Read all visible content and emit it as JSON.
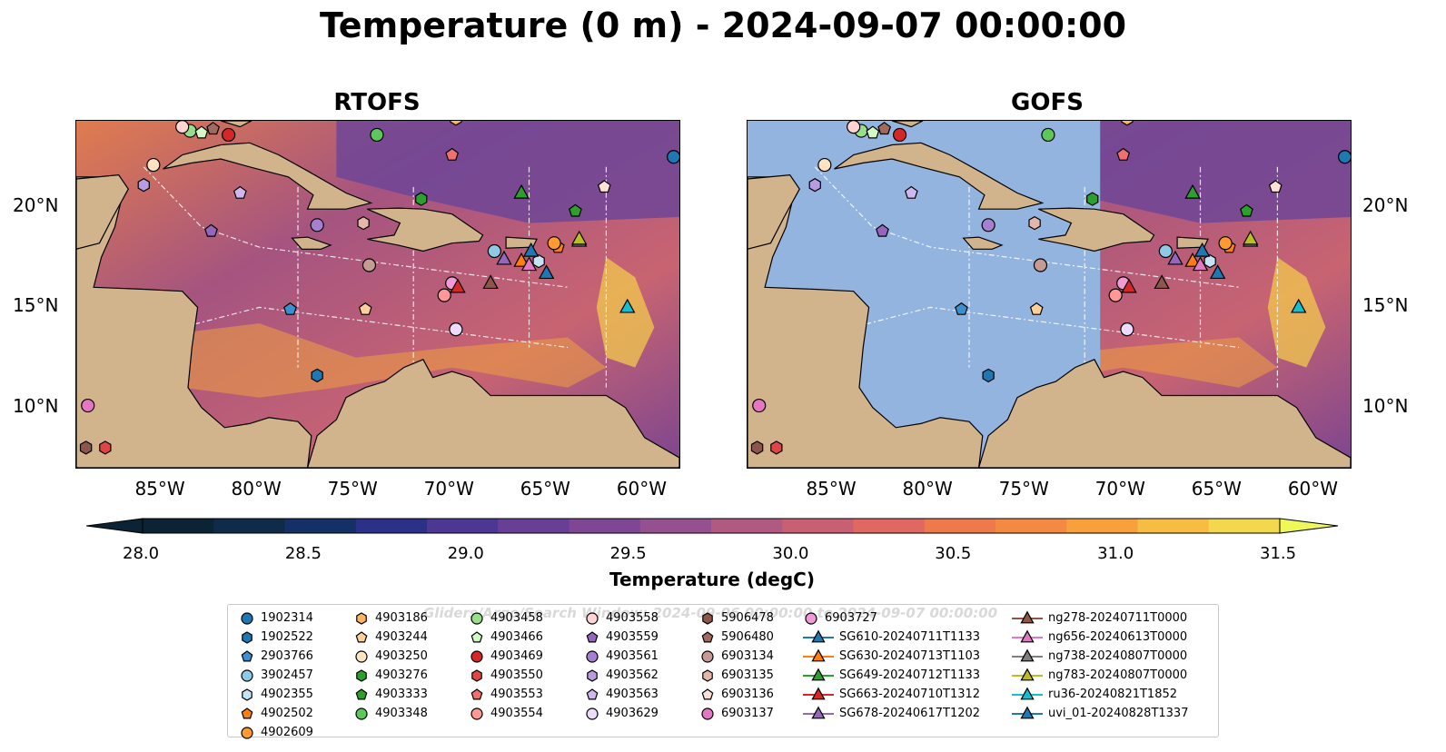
{
  "title": "Temperature (0 m) - 2024-09-07 00:00:00",
  "panels": [
    {
      "title": "RTOFS"
    },
    {
      "title": "GOFS"
    }
  ],
  "axes": {
    "lon_ticks": [
      "85°W",
      "80°W",
      "75°W",
      "70°W",
      "65°W",
      "60°W"
    ],
    "lat_ticks": [
      "20°N",
      "15°N",
      "10°N"
    ]
  },
  "colorbar": {
    "label": "Temperature (degC)",
    "min": 28.0,
    "max": 31.5,
    "ticks": [
      "28.0",
      "28.5",
      "29.0",
      "29.5",
      "30.0",
      "30.5",
      "31.0",
      "31.5"
    ],
    "colors": [
      "#0b2335",
      "#102a4a",
      "#153066",
      "#2b3088",
      "#4c3893",
      "#683f96",
      "#7f4694",
      "#955090",
      "#b05a82",
      "#c85f72",
      "#df6960",
      "#ee7a4c",
      "#f48a42",
      "#f7a03c",
      "#f6bd42",
      "#f3d84e"
    ],
    "extend_low_color": "#0b2335",
    "extend_high_color": "#eef85a"
  },
  "legend": {
    "watermark": "Gliders/Argo/Search Window: 2024-09-06 00:00:00 to 2024-09-07 00:00:00",
    "items": [
      {
        "label": "1902314",
        "marker": "circle",
        "color": "#1f77b4"
      },
      {
        "label": "1902522",
        "marker": "hexagon",
        "color": "#1f77b4"
      },
      {
        "label": "2903766",
        "marker": "pentagon",
        "color": "#3a8fd0"
      },
      {
        "label": "3902457",
        "marker": "circle",
        "color": "#8ecae6"
      },
      {
        "label": "4902355",
        "marker": "hexagon",
        "color": "#c6e2f5"
      },
      {
        "label": "4902502",
        "marker": "pentagon",
        "color": "#ff7f0e"
      },
      {
        "label": "4902609",
        "marker": "circle",
        "color": "#ff9a2e"
      },
      {
        "label": "4903186",
        "marker": "hexagon",
        "color": "#ffb366"
      },
      {
        "label": "4903244",
        "marker": "pentagon",
        "color": "#ffcf99"
      },
      {
        "label": "4903250",
        "marker": "circle",
        "color": "#ffe4c4"
      },
      {
        "label": "4903276",
        "marker": "hexagon",
        "color": "#2ca02c"
      },
      {
        "label": "4903333",
        "marker": "pentagon",
        "color": "#2ca02c"
      },
      {
        "label": "4903348",
        "marker": "circle",
        "color": "#5cc85c"
      },
      {
        "label": "4903458",
        "marker": "circle",
        "color": "#98df8a"
      },
      {
        "label": "4903466",
        "marker": "pentagon",
        "color": "#d4f7c4"
      },
      {
        "label": "4903469",
        "marker": "circle",
        "color": "#d62728"
      },
      {
        "label": "4903550",
        "marker": "hexagon",
        "color": "#e04545"
      },
      {
        "label": "4903553",
        "marker": "pentagon",
        "color": "#f07070"
      },
      {
        "label": "4903554",
        "marker": "circle",
        "color": "#ff9896"
      },
      {
        "label": "4903558",
        "marker": "circle",
        "color": "#ffd4d2"
      },
      {
        "label": "4903559",
        "marker": "pentagon",
        "color": "#9467bd"
      },
      {
        "label": "4903561",
        "marker": "circle",
        "color": "#a57fd0"
      },
      {
        "label": "4903562",
        "marker": "hexagon",
        "color": "#b89be0"
      },
      {
        "label": "4903563",
        "marker": "pentagon",
        "color": "#cfb7ef"
      },
      {
        "label": "4903629",
        "marker": "circle",
        "color": "#ecdcfb"
      },
      {
        "label": "5906478",
        "marker": "hexagon",
        "color": "#8c564b"
      },
      {
        "label": "5906480",
        "marker": "pentagon",
        "color": "#a06a5e"
      },
      {
        "label": "6903134",
        "marker": "circle",
        "color": "#c49c94"
      },
      {
        "label": "6903135",
        "marker": "hexagon",
        "color": "#e5b7ab"
      },
      {
        "label": "6903136",
        "marker": "pentagon",
        "color": "#fde0d6"
      },
      {
        "label": "6903137",
        "marker": "circle",
        "color": "#e377c2"
      },
      {
        "label": "6903727",
        "marker": "circle",
        "color": "#f09ad6"
      },
      {
        "label": "SG610-20240711T1133",
        "marker": "triangle",
        "color": "#1f77b4"
      },
      {
        "label": "SG630-20240713T1103",
        "marker": "triangle",
        "color": "#ff7f0e"
      },
      {
        "label": "SG649-20240712T1133",
        "marker": "triangle",
        "color": "#2ca02c"
      },
      {
        "label": "SG663-20240710T1312",
        "marker": "triangle",
        "color": "#d62728"
      },
      {
        "label": "SG678-20240617T1202",
        "marker": "triangle",
        "color": "#9467bd"
      },
      {
        "label": "ng278-20240711T0000",
        "marker": "triangle",
        "color": "#8c564b"
      },
      {
        "label": "ng656-20240613T0000",
        "marker": "triangle",
        "color": "#e377c2"
      },
      {
        "label": "ng738-20240807T0000",
        "marker": "triangle",
        "color": "#7f7f7f"
      },
      {
        "label": "ng783-20240807T0000",
        "marker": "triangle",
        "color": "#bcbd22"
      },
      {
        "label": "ru36-20240821T1852",
        "marker": "triangle",
        "color": "#17becf"
      },
      {
        "label": "uvi_01-20240828T1337",
        "marker": "triangle",
        "color": "#1f77b4"
      }
    ]
  },
  "colors": {
    "land": "#d2b48c",
    "gofs_missing": "#94b4e0",
    "ocean_mid": "#8d5a92"
  },
  "markers_on_map": [
    {
      "label": "1902314",
      "lon": -58.5,
      "lat": 22.5
    },
    {
      "label": "1902522",
      "lon": -77.0,
      "lat": 11.6
    },
    {
      "label": "2903766",
      "lon": -78.4,
      "lat": 14.9
    },
    {
      "label": "3902457",
      "lon": -67.8,
      "lat": 17.8
    },
    {
      "label": "4902355",
      "lon": -65.5,
      "lat": 17.3
    },
    {
      "label": "4902502",
      "lon": -64.5,
      "lat": 18.0
    },
    {
      "label": "4902609",
      "lon": -64.7,
      "lat": 18.2
    },
    {
      "label": "4903186",
      "lon": -69.8,
      "lat": 24.4
    },
    {
      "label": "4903244",
      "lon": -74.5,
      "lat": 14.9
    },
    {
      "label": "4903250",
      "lon": -85.5,
      "lat": 22.1
    },
    {
      "label": "4903276",
      "lon": -71.6,
      "lat": 20.4
    },
    {
      "label": "4903333",
      "lon": -63.6,
      "lat": 19.8
    },
    {
      "label": "4903348",
      "lon": -73.9,
      "lat": 23.6
    },
    {
      "label": "4903458",
      "lon": -83.6,
      "lat": 23.8
    },
    {
      "label": "4903466",
      "lon": -83.0,
      "lat": 23.7
    },
    {
      "label": "4903469",
      "lon": -81.6,
      "lat": 23.6
    },
    {
      "label": "4903550",
      "lon": -88.0,
      "lat": 8.0
    },
    {
      "label": "4903553",
      "lon": -70.0,
      "lat": 22.6
    },
    {
      "label": "4903554",
      "lon": -70.4,
      "lat": 15.6
    },
    {
      "label": "4903558",
      "lon": -84.0,
      "lat": 24.0
    },
    {
      "label": "4903559",
      "lon": -82.5,
      "lat": 18.8
    },
    {
      "label": "4903561",
      "lon": -77.0,
      "lat": 19.1
    },
    {
      "label": "4903562",
      "lon": -86.0,
      "lat": 21.1
    },
    {
      "label": "4903563",
      "lon": -81.0,
      "lat": 20.7
    },
    {
      "label": "4903629",
      "lon": -69.8,
      "lat": 13.9
    },
    {
      "label": "5906478",
      "lon": -89.0,
      "lat": 8.0
    },
    {
      "label": "5906480",
      "lon": -82.4,
      "lat": 23.9
    },
    {
      "label": "6903134",
      "lon": -74.3,
      "lat": 17.1
    },
    {
      "label": "6903135",
      "lon": -74.6,
      "lat": 19.2
    },
    {
      "label": "6903136",
      "lon": -62.1,
      "lat": 21.0
    },
    {
      "label": "6903137",
      "lon": -88.9,
      "lat": 10.1
    },
    {
      "label": "6903727",
      "lon": -70.0,
      "lat": 16.2
    },
    {
      "label": "SG610-20240711T1133",
      "lon": -65.9,
      "lat": 17.8
    },
    {
      "label": "SG630-20240713T1103",
      "lon": -66.4,
      "lat": 17.3
    },
    {
      "label": "SG649-20240712T1133",
      "lon": -66.4,
      "lat": 20.7
    },
    {
      "label": "SG663-20240710T1312",
      "lon": -69.7,
      "lat": 16.0
    },
    {
      "label": "SG678-20240617T1202",
      "lon": -67.3,
      "lat": 17.4
    },
    {
      "label": "ng278-20240711T0000",
      "lon": -68.0,
      "lat": 16.2
    },
    {
      "label": "ng656-20240613T0000",
      "lon": -66.0,
      "lat": 17.1
    },
    {
      "label": "ng738-20240807T0000",
      "lon": -63.4,
      "lat": 18.3
    },
    {
      "label": "ng783-20240807T0000",
      "lon": -63.4,
      "lat": 18.4
    },
    {
      "label": "ru36-20240821T1852",
      "lon": -60.9,
      "lat": 15.0
    },
    {
      "label": "uvi_01-20240828T1337",
      "lon": -65.1,
      "lat": 16.7
    }
  ]
}
